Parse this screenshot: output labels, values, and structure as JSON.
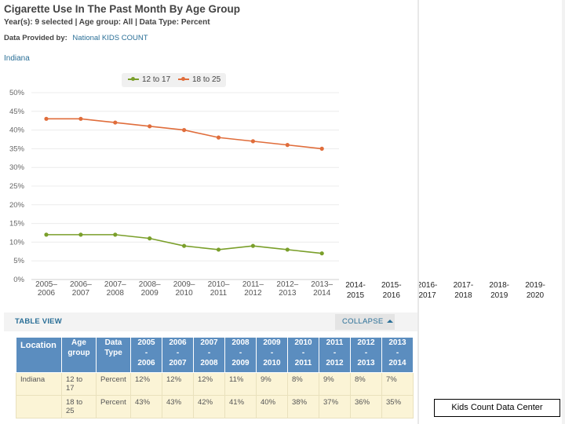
{
  "header": {
    "title": "Cigarette Use In The Past Month By Age Group",
    "meta": "Year(s): 9 selected | Age group: All | Data Type: Percent",
    "provider_label": "Data Provided by:",
    "provider_link": "National KIDS COUNT",
    "location": "Indiana"
  },
  "legend": [
    {
      "name": "12 to 17",
      "color": "#7a9f2a"
    },
    {
      "name": "18 to 25",
      "color": "#e06d3b"
    }
  ],
  "chart_data": {
    "type": "line",
    "title": "Cigarette Use In The Past Month By Age Group",
    "xlabel": "",
    "ylabel": "",
    "ylim": [
      0,
      50
    ],
    "y_ticks": [
      "0%",
      "5%",
      "10%",
      "15%",
      "20%",
      "25%",
      "30%",
      "35%",
      "40%",
      "45%",
      "50%"
    ],
    "categories": [
      [
        "2005–",
        "2006"
      ],
      [
        "2006–",
        "2007"
      ],
      [
        "2007–",
        "2008"
      ],
      [
        "2008–",
        "2009"
      ],
      [
        "2009–",
        "2010"
      ],
      [
        "2010–",
        "2011"
      ],
      [
        "2011–",
        "2012"
      ],
      [
        "2012–",
        "2013"
      ],
      [
        "2013–",
        "2014"
      ]
    ],
    "extra_categories": [
      [
        "2014-",
        "2015"
      ],
      [
        "2015-",
        "2016"
      ],
      [
        "2016-",
        "2017"
      ],
      [
        "2017-",
        "2018"
      ],
      [
        "2018-",
        "2019"
      ],
      [
        "2019-",
        "2020"
      ]
    ],
    "series": [
      {
        "name": "12 to 17",
        "color": "#7a9f2a",
        "values": [
          12,
          12,
          12,
          11,
          9,
          8,
          9,
          8,
          7
        ]
      },
      {
        "name": "18 to 25",
        "color": "#e06d3b",
        "values": [
          43,
          43,
          42,
          41,
          40,
          38,
          37,
          36,
          35
        ]
      }
    ]
  },
  "toolbar": {
    "table_view": "TABLE VIEW",
    "collapse": "COLLAPSE"
  },
  "table": {
    "headers": {
      "location": "Location",
      "age_group": [
        "Age",
        "group"
      ],
      "data_type": [
        "Data",
        "Type"
      ],
      "years": [
        [
          "2005",
          "-",
          "2006"
        ],
        [
          "2006",
          "-",
          "2007"
        ],
        [
          "2007",
          "-",
          "2008"
        ],
        [
          "2008",
          "-",
          "2009"
        ],
        [
          "2009",
          "-",
          "2010"
        ],
        [
          "2010",
          "-",
          "2011"
        ],
        [
          "2011",
          "-",
          "2012"
        ],
        [
          "2012",
          "-",
          "2013"
        ],
        [
          "2013",
          "-",
          "2014"
        ]
      ]
    },
    "rows": [
      {
        "location": "Indiana",
        "age": [
          "12 to",
          "17"
        ],
        "type": "Percent",
        "values": [
          "12%",
          "12%",
          "12%",
          "11%",
          "9%",
          "8%",
          "9%",
          "8%",
          "7%"
        ]
      },
      {
        "location": "",
        "age": [
          "18 to",
          "25"
        ],
        "type": "Percent",
        "values": [
          "43%",
          "43%",
          "42%",
          "41%",
          "40%",
          "38%",
          "37%",
          "36%",
          "35%"
        ]
      }
    ]
  },
  "footer": {
    "badge": "Kids Count Data Center"
  }
}
